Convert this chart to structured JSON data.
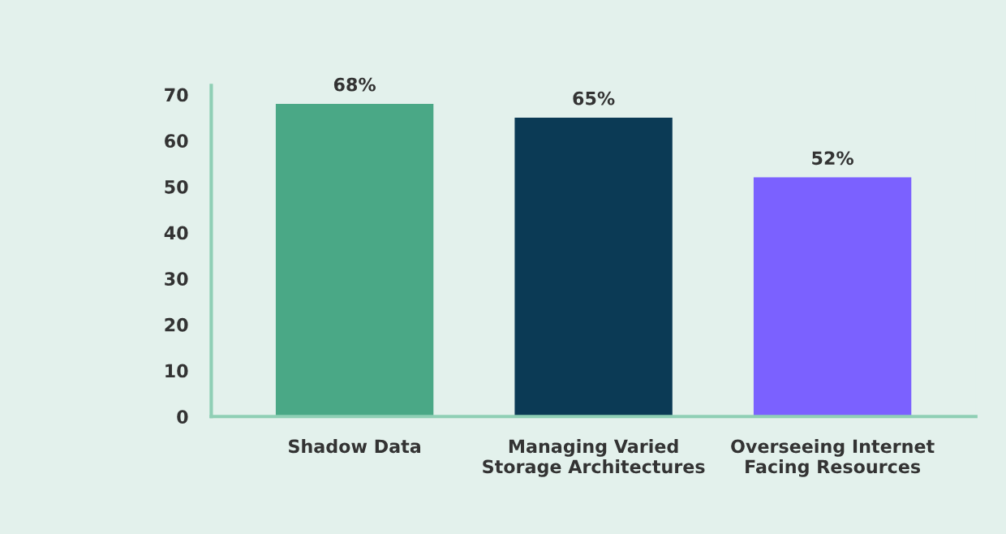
{
  "chart_data": {
    "type": "bar",
    "categories": [
      "Shadow Data",
      "Managing Varied\nStorage Architectures",
      "Overseeing Internet\nFacing Resources"
    ],
    "values": [
      68,
      65,
      52
    ],
    "colors": [
      "#4aa886",
      "#0b3a55",
      "#7b61ff"
    ],
    "value_labels": [
      "68%",
      "65%",
      "52%"
    ],
    "ylim": [
      0,
      72
    ],
    "yticks": [
      0,
      10,
      20,
      30,
      40,
      50,
      60,
      70
    ],
    "grid": false,
    "legend": false
  }
}
